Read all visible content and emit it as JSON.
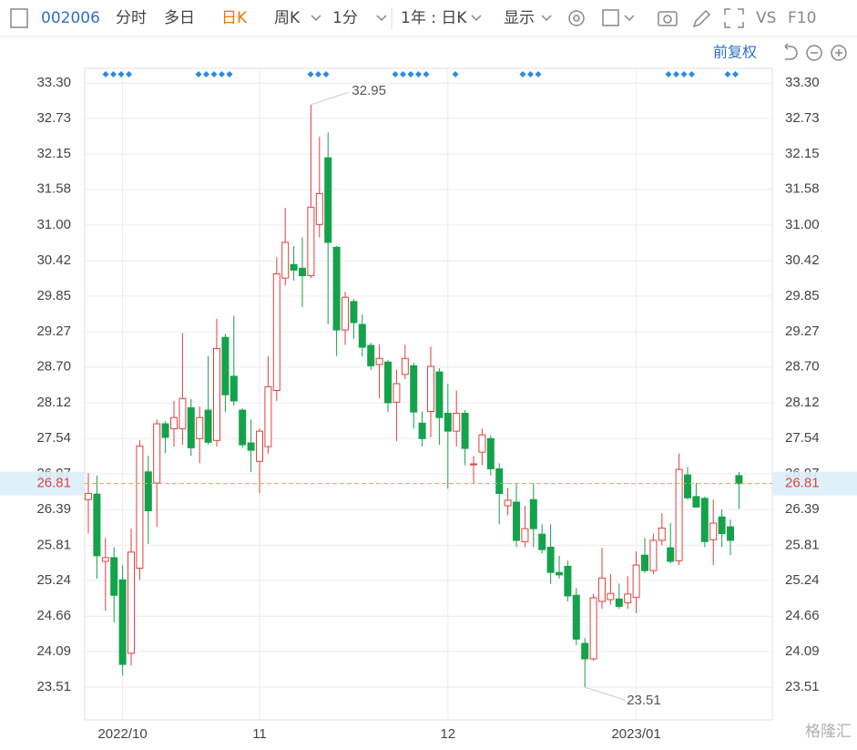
{
  "toolbar": {
    "code": "002006",
    "tabs": [
      "分时",
      "多日",
      "日K",
      "周K",
      "1分",
      "1年 : 日K",
      "显示"
    ],
    "vs": "VS",
    "f10": "F10",
    "adjust": "前复权"
  },
  "watermark": "格隆汇",
  "chart_data": {
    "type": "candlestick",
    "categories": [
      null,
      null,
      null,
      null,
      "2022/10",
      null,
      null,
      null,
      null,
      null,
      null,
      null,
      null,
      null,
      null,
      null,
      null,
      null,
      null,
      null,
      "11",
      null,
      null,
      null,
      null,
      null,
      null,
      null,
      null,
      null,
      null,
      null,
      null,
      null,
      null,
      null,
      null,
      null,
      null,
      null,
      null,
      null,
      "12",
      null,
      null,
      null,
      null,
      null,
      null,
      null,
      null,
      null,
      null,
      null,
      null,
      null,
      null,
      null,
      null,
      null,
      null,
      null,
      null,
      null,
      "2023/01",
      null,
      null,
      null,
      null,
      null,
      null,
      null,
      null,
      null,
      null,
      null,
      null
    ],
    "open": [
      26.55,
      26.64,
      25.55,
      25.61,
      25.25,
      24.06,
      25.44,
      27.0,
      26.82,
      27.78,
      27.7,
      27.7,
      28.04,
      27.54,
      28.0,
      27.51,
      29.18,
      28.55,
      28.0,
      27.47,
      27.17,
      27.41,
      28.32,
      30.14,
      30.36,
      30.3,
      30.18,
      31.01,
      32.09,
      30.64,
      29.3,
      29.76,
      29.39,
      29.05,
      28.74,
      28.78,
      28.13,
      28.58,
      28.72,
      27.79,
      27.98,
      28.62,
      27.95,
      27.66,
      27.95,
      27.13,
      27.32,
      27.54,
      27.05,
      26.45,
      26.51,
      25.87,
      26.55,
      25.99,
      25.78,
      25.37,
      25.47,
      25.0,
      24.22,
      23.97,
      24.9,
      24.93,
      24.94,
      24.88,
      24.97,
      25.65,
      25.4,
      25.89,
      25.77,
      25.56,
      26.95,
      26.6,
      26.57,
      25.9,
      26.27,
      26.11,
      26.94
    ],
    "high": [
      26.98,
      26.94,
      25.93,
      25.78,
      25.49,
      26.08,
      27.51,
      27.26,
      27.85,
      27.82,
      28.15,
      29.25,
      28.18,
      28.06,
      28.88,
      29.48,
      29.24,
      29.53,
      28.03,
      27.85,
      27.7,
      28.88,
      30.48,
      31.28,
      30.66,
      30.8,
      32.95,
      32.43,
      32.5,
      30.66,
      29.92,
      29.8,
      29.55,
      29.09,
      29.06,
      28.81,
      28.66,
      29.06,
      28.77,
      27.98,
      29.03,
      28.68,
      28.43,
      28.32,
      28.0,
      27.26,
      27.7,
      27.59,
      27.14,
      26.74,
      26.82,
      26.45,
      26.82,
      26.15,
      26.15,
      25.64,
      25.56,
      25.12,
      24.31,
      25.02,
      25.77,
      25.34,
      25.19,
      25.31,
      25.71,
      25.93,
      26.0,
      26.33,
      26.17,
      27.3,
      27.08,
      26.82,
      26.6,
      26.55,
      26.39,
      26.23,
      27.0
    ],
    "low": [
      26.0,
      25.27,
      24.75,
      24.56,
      23.7,
      23.86,
      25.25,
      25.83,
      26.11,
      27.3,
      27.41,
      27.44,
      27.26,
      27.14,
      27.44,
      27.41,
      27.97,
      28.07,
      27.39,
      27.0,
      26.65,
      27.29,
      28.15,
      30.02,
      30.1,
      29.67,
      30.14,
      30.8,
      29.39,
      28.88,
      29.06,
      29.15,
      28.87,
      28.65,
      28.19,
      27.97,
      27.5,
      28.5,
      27.7,
      27.41,
      27.56,
      27.44,
      26.73,
      27.41,
      27.11,
      26.82,
      27.11,
      26.94,
      26.15,
      26.3,
      25.78,
      25.78,
      25.78,
      25.68,
      25.19,
      25.27,
      24.9,
      24.19,
      23.51,
      23.94,
      24.78,
      24.85,
      24.78,
      24.78,
      24.71,
      25.36,
      25.34,
      25.81,
      25.52,
      25.49,
      26.55,
      26.43,
      25.78,
      25.49,
      25.78,
      25.65,
      26.4
    ],
    "close": [
      26.65,
      25.64,
      25.61,
      25.0,
      23.88,
      25.7,
      27.42,
      26.37,
      27.78,
      27.56,
      27.88,
      28.19,
      27.39,
      27.88,
      27.48,
      29.0,
      28.25,
      28.15,
      27.44,
      27.35,
      27.66,
      28.38,
      30.21,
      30.72,
      30.27,
      30.18,
      31.29,
      31.51,
      30.72,
      29.3,
      29.83,
      29.42,
      29.02,
      28.72,
      28.84,
      28.12,
      28.43,
      28.84,
      27.97,
      27.54,
      28.71,
      27.88,
      27.66,
      27.95,
      27.38,
      27.13,
      27.6,
      27.05,
      26.65,
      26.54,
      25.89,
      26.08,
      26.08,
      25.74,
      25.37,
      25.33,
      24.99,
      24.29,
      23.97,
      24.96,
      25.28,
      25.03,
      24.82,
      25.02,
      25.49,
      25.4,
      25.89,
      26.09,
      25.55,
      27.04,
      26.58,
      26.43,
      25.87,
      26.17,
      26.0,
      25.89,
      26.81
    ],
    "up_color": "#e2403c",
    "down_color": "#14a24b",
    "reference_color": "#e8a24a",
    "ylim": [
      22.98,
      33.54
    ],
    "yticks": [
      23.51,
      24.09,
      24.66,
      25.24,
      25.81,
      26.39,
      26.97,
      27.54,
      28.12,
      {
        "value": 28.7,
        "label": "28.70"
      },
      29.27,
      29.85,
      30.42,
      {
        "value": 31,
        "label": "31.00"
      },
      31.58,
      32.15,
      32.73,
      {
        "value": 33.3,
        "label": "33.30"
      }
    ],
    "grid": true
  }
}
